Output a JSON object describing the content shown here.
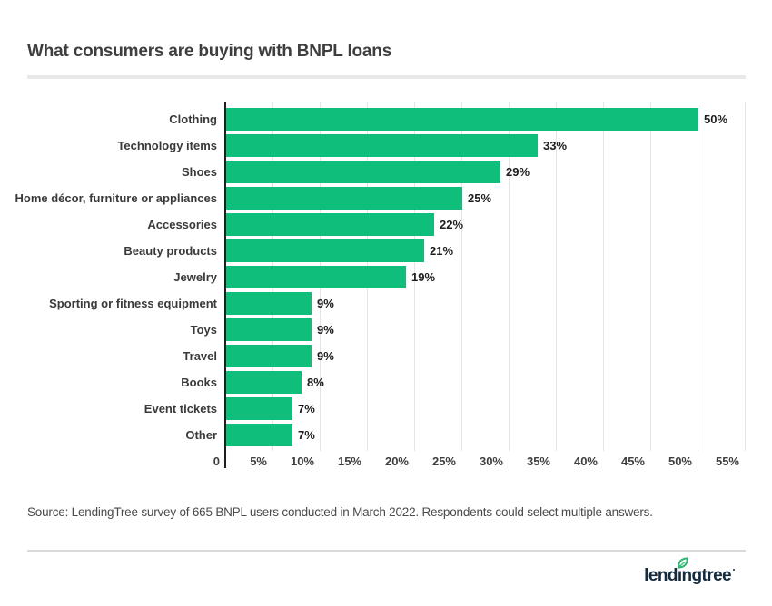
{
  "page": {
    "title": "What consumers are buying with BNPL loans",
    "source": "Source: LendingTree survey of 665 BNPL users conducted in March 2022. Respondents could select multiple answers.",
    "logo": {
      "text": "lendingtree",
      "text_left": "lend",
      "text_right": "ngtree"
    },
    "colors": {
      "bar_green": "#10be7c",
      "axis_black": "#1f1f1f",
      "gridline_gray": "#e4e4e4",
      "title_gray": "#3e3e3e",
      "label_gray": "#3a3a3a",
      "value_black": "#1d1d1d",
      "logo_navy": "#142b3f",
      "leaf_green": "#2cb574",
      "divider_gray": "#e8e8e8"
    }
  },
  "chart_data": {
    "type": "bar",
    "orientation": "horizontal",
    "title": "What consumers are buying with BNPL loans",
    "categories": [
      "Clothing",
      "Technology items",
      "Shoes",
      "Home décor, furniture or appliances",
      "Accessories",
      "Beauty products",
      "Jewelry",
      "Sporting or fitness equipment",
      "Toys",
      "Travel",
      "Books",
      "Event tickets",
      "Other"
    ],
    "values": [
      50,
      33,
      29,
      25,
      22,
      21,
      19,
      9,
      9,
      9,
      8,
      7,
      7
    ],
    "value_labels": [
      "50%",
      "33%",
      "29%",
      "25%",
      "22%",
      "21%",
      "19%",
      "9%",
      "9%",
      "9%",
      "8%",
      "7%",
      "7%"
    ],
    "x_ticks": [
      {
        "label": "0",
        "value": 0
      },
      {
        "label": "5%",
        "value": 5
      },
      {
        "label": "10%",
        "value": 10
      },
      {
        "label": "15%",
        "value": 15
      },
      {
        "label": "20%",
        "value": 20
      },
      {
        "label": "25%",
        "value": 25
      },
      {
        "label": "30%",
        "value": 30
      },
      {
        "label": "35%",
        "value": 35
      },
      {
        "label": "40%",
        "value": 40
      },
      {
        "label": "45%",
        "value": 45
      },
      {
        "label": "50%",
        "value": 50
      },
      {
        "label": "55%",
        "value": 55
      }
    ],
    "xlim": [
      0,
      55
    ],
    "grid": "vertical",
    "legend": "none",
    "bar_color": "#10be7c"
  }
}
